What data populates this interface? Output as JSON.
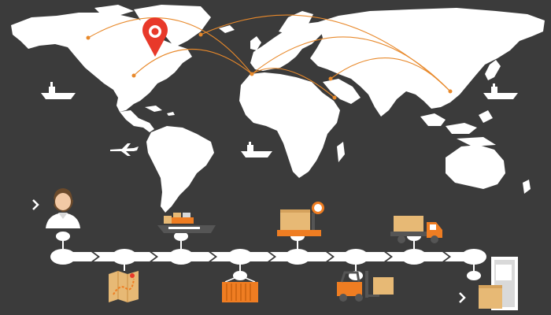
{
  "colors": {
    "background": "#3b3b3b",
    "land": "#ffffff",
    "route": "#e8892b",
    "pin": "#e8392a",
    "orange": "#ef7d22",
    "box": "#e7b975"
  },
  "pin": {
    "icon": "location-pin-icon"
  },
  "routes": [
    {
      "from": "north-america-west",
      "to": "europe"
    },
    {
      "from": "north-america-east",
      "to": "europe"
    },
    {
      "from": "north-america-east",
      "to": "east-asia"
    },
    {
      "from": "west-africa",
      "to": "east-asia"
    },
    {
      "from": "europe",
      "to": "east-asia"
    },
    {
      "from": "middle-east",
      "to": "europe"
    }
  ],
  "timeline": {
    "steps": [
      {
        "icon": "customer-support-agent-icon",
        "stage": "order"
      },
      {
        "icon": "route-map-icon",
        "stage": "planning"
      },
      {
        "icon": "cargo-ship-icon",
        "stage": "sea-freight"
      },
      {
        "icon": "container-crane-icon",
        "stage": "unloading"
      },
      {
        "icon": "weighing-scale-box-icon",
        "stage": "weighing"
      },
      {
        "icon": "forklift-icon",
        "stage": "warehouse"
      },
      {
        "icon": "delivery-truck-icon",
        "stage": "transport"
      },
      {
        "icon": "door-delivery-icon",
        "stage": "delivered"
      }
    ]
  }
}
